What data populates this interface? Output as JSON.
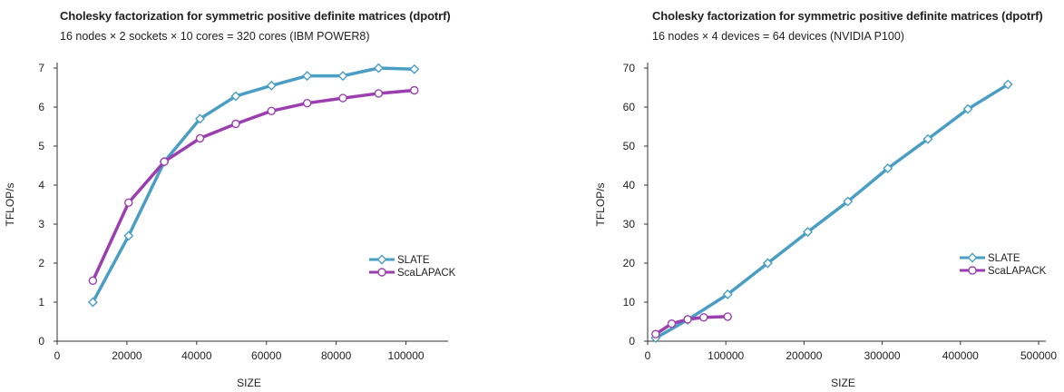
{
  "colors": {
    "slate": "#4a9ec4",
    "scalapack": "#9b3fb0",
    "axis": "#333333"
  },
  "chart_data": [
    {
      "type": "line",
      "title": "Cholesky factorization for symmetric positive definite matrices (dpotrf)",
      "subtitle": "16 nodes × 2 sockets × 10 cores = 320 cores (IBM POWER8)",
      "xlabel": "SIZE",
      "ylabel": "TFLOP/s",
      "xlim": [
        0,
        110000
      ],
      "ylim": [
        0,
        7
      ],
      "xticks": [
        0,
        20000,
        40000,
        60000,
        80000,
        100000
      ],
      "yticks": [
        0,
        1,
        2,
        3,
        4,
        5,
        6,
        7
      ],
      "grid": false,
      "legend_position": "bottom-right",
      "series": [
        {
          "name": "SLATE",
          "marker": "diamond",
          "x": [
            10240,
            20480,
            30720,
            40960,
            51200,
            61440,
            71680,
            81920,
            92160,
            102400
          ],
          "y": [
            1.0,
            2.7,
            4.6,
            5.7,
            6.28,
            6.55,
            6.8,
            6.8,
            7.0,
            6.97
          ]
        },
        {
          "name": "ScaLAPACK",
          "marker": "circle",
          "x": [
            10240,
            20480,
            30720,
            40960,
            51200,
            61440,
            71680,
            81920,
            92160,
            102400
          ],
          "y": [
            1.55,
            3.55,
            4.6,
            5.2,
            5.57,
            5.9,
            6.1,
            6.23,
            6.35,
            6.43
          ]
        }
      ]
    },
    {
      "type": "line",
      "title": "Cholesky factorization for symmetric positive definite matrices (dpotrf)",
      "subtitle": "16 nodes × 4 devices = 64 devices (NVIDIA P100)",
      "xlabel": "SIZE",
      "ylabel": "TFLOP/s",
      "xlim": [
        0,
        500000
      ],
      "ylim": [
        0,
        70
      ],
      "xticks": [
        0,
        100000,
        200000,
        300000,
        400000,
        500000
      ],
      "yticks": [
        0,
        10,
        20,
        30,
        40,
        50,
        60,
        70
      ],
      "grid": false,
      "legend_position": "bottom-right",
      "series": [
        {
          "name": "SLATE",
          "marker": "diamond",
          "x": [
            10240,
            51200,
            102400,
            153600,
            204800,
            256000,
            307200,
            358400,
            409600,
            460800
          ],
          "y": [
            0.8,
            5.5,
            12.0,
            20.0,
            28.0,
            35.8,
            44.3,
            51.8,
            59.5,
            65.8
          ]
        },
        {
          "name": "ScaLAPACK",
          "marker": "circle",
          "x": [
            10240,
            30720,
            51200,
            71680,
            102400
          ],
          "y": [
            1.8,
            4.5,
            5.6,
            6.1,
            6.3
          ]
        }
      ]
    }
  ]
}
